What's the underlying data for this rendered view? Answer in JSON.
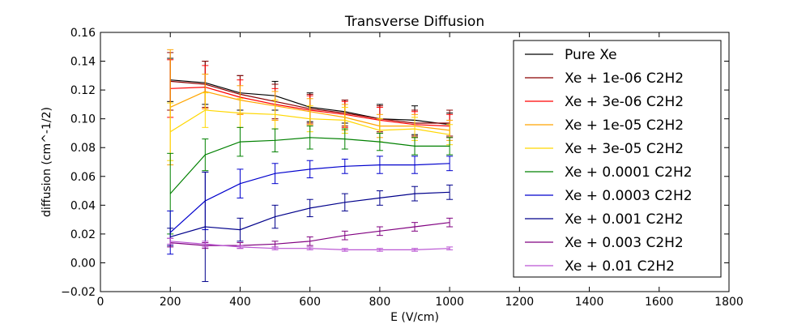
{
  "chart_data": {
    "type": "line",
    "title": "Transverse Diffusion",
    "xlabel": "E (V/cm)",
    "ylabel": "diffusion (cm^-1/2)",
    "xlim": [
      0,
      1800
    ],
    "ylim": [
      -0.02,
      0.16
    ],
    "xticks": [
      "0",
      "200",
      "400",
      "600",
      "800",
      "1000",
      "1200",
      "1400",
      "1600",
      "1800"
    ],
    "yticks": [
      "−0.02",
      "0.00",
      "0.02",
      "0.04",
      "0.06",
      "0.08",
      "0.10",
      "0.12",
      "0.14",
      "0.16"
    ],
    "grid": false,
    "legend_position": "top-right",
    "x": [
      200,
      300,
      400,
      500,
      600,
      700,
      800,
      900,
      1000
    ],
    "series": [
      {
        "name": "Pure Xe",
        "color": "#000000",
        "values": [
          0.127,
          0.125,
          0.118,
          0.116,
          0.108,
          0.105,
          0.1,
          0.099,
          0.096
        ],
        "errors": [
          0.015,
          0.015,
          0.012,
          0.01,
          0.01,
          0.008,
          0.01,
          0.01,
          0.008
        ]
      },
      {
        "name": "Xe + 1e-06 C2H2",
        "color": "#8b0000",
        "values": [
          0.126,
          0.124,
          0.117,
          0.112,
          0.107,
          0.104,
          0.1,
          0.097,
          0.097
        ],
        "errors": [
          0.02,
          0.016,
          0.013,
          0.012,
          0.01,
          0.009,
          0.009,
          0.009,
          0.009
        ]
      },
      {
        "name": "Xe + 3e-06 C2H2",
        "color": "#ff0000",
        "values": [
          0.121,
          0.122,
          0.115,
          0.11,
          0.106,
          0.103,
          0.099,
          0.096,
          0.095
        ],
        "errors": [
          0.02,
          0.015,
          0.012,
          0.011,
          0.01,
          0.009,
          0.009,
          0.009,
          0.008
        ]
      },
      {
        "name": "Xe + 1e-05 C2H2",
        "color": "#ffa500",
        "values": [
          0.108,
          0.119,
          0.113,
          0.109,
          0.105,
          0.101,
          0.095,
          0.095,
          0.092
        ],
        "errors": [
          0.04,
          0.012,
          0.01,
          0.01,
          0.009,
          0.009,
          0.008,
          0.008,
          0.007
        ]
      },
      {
        "name": "Xe + 3e-05 C2H2",
        "color": "#ffd700",
        "values": [
          0.091,
          0.106,
          0.104,
          0.103,
          0.1,
          0.099,
          0.092,
          0.093,
          0.089
        ],
        "errors": [
          0.02,
          0.012,
          0.01,
          0.01,
          0.009,
          0.009,
          0.008,
          0.008,
          0.007
        ]
      },
      {
        "name": "Xe + 0.0001 C2H2",
        "color": "#008000",
        "values": [
          0.048,
          0.075,
          0.084,
          0.085,
          0.087,
          0.086,
          0.084,
          0.081,
          0.081
        ],
        "errors": [
          0.028,
          0.011,
          0.01,
          0.008,
          0.008,
          0.007,
          0.006,
          0.006,
          0.006
        ]
      },
      {
        "name": "Xe + 0.0003 C2H2",
        "color": "#0000cd",
        "values": [
          0.021,
          0.043,
          0.055,
          0.062,
          0.065,
          0.067,
          0.068,
          0.068,
          0.069
        ],
        "errors": [
          0.015,
          0.02,
          0.01,
          0.007,
          0.006,
          0.005,
          0.006,
          0.006,
          0.005
        ]
      },
      {
        "name": "Xe + 0.001 C2H2",
        "color": "#00008b",
        "values": [
          0.018,
          0.025,
          0.023,
          0.032,
          0.038,
          0.042,
          0.045,
          0.048,
          0.049
        ],
        "errors": [
          0.006,
          0.038,
          0.008,
          0.008,
          0.006,
          0.006,
          0.005,
          0.005,
          0.005
        ]
      },
      {
        "name": "Xe + 0.003 C2H2",
        "color": "#800080",
        "values": [
          0.014,
          0.012,
          0.012,
          0.013,
          0.015,
          0.019,
          0.022,
          0.025,
          0.028
        ],
        "errors": [
          0.003,
          0.002,
          0.002,
          0.002,
          0.003,
          0.003,
          0.003,
          0.003,
          0.003
        ]
      },
      {
        "name": "Xe + 0.01 C2H2",
        "color": "#ba55d3",
        "values": [
          0.015,
          0.013,
          0.011,
          0.01,
          0.01,
          0.009,
          0.009,
          0.009,
          0.01
        ],
        "errors": [
          0.002,
          0.002,
          0.001,
          0.001,
          0.001,
          0.001,
          0.001,
          0.001,
          0.001
        ]
      }
    ]
  }
}
